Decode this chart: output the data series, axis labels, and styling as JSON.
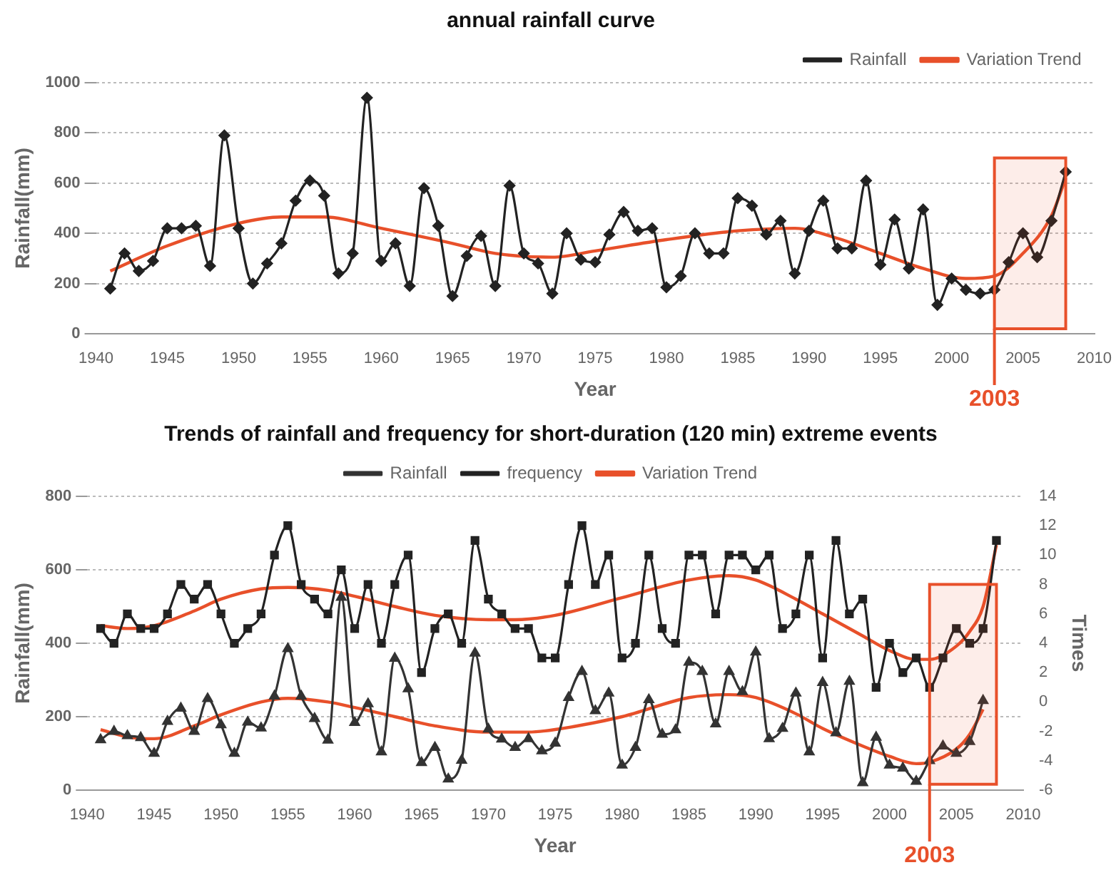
{
  "chart_data": [
    {
      "type": "line",
      "title": "annual rainfall curve",
      "xlabel": "Year",
      "ylabel": "Rainfall(mm)",
      "x": [
        1941,
        1942,
        1943,
        1944,
        1945,
        1946,
        1947,
        1948,
        1949,
        1950,
        1951,
        1952,
        1953,
        1954,
        1955,
        1956,
        1957,
        1958,
        1959,
        1960,
        1961,
        1962,
        1963,
        1964,
        1965,
        1966,
        1967,
        1968,
        1969,
        1970,
        1971,
        1972,
        1973,
        1974,
        1975,
        1976,
        1977,
        1978,
        1979,
        1980,
        1981,
        1982,
        1983,
        1984,
        1985,
        1986,
        1987,
        1988,
        1989,
        1990,
        1991,
        1992,
        1993,
        1994,
        1995,
        1996,
        1997,
        1998,
        1999,
        2000,
        2001,
        2002,
        2003,
        2004,
        2005,
        2006,
        2007,
        2008
      ],
      "series": [
        {
          "name": "Rainfall",
          "color": "#222222",
          "marker": "diamond",
          "values": [
            180,
            320,
            250,
            290,
            420,
            420,
            430,
            270,
            790,
            420,
            200,
            280,
            360,
            530,
            610,
            550,
            240,
            320,
            940,
            290,
            360,
            190,
            580,
            430,
            150,
            310,
            390,
            190,
            590,
            320,
            280,
            160,
            400,
            295,
            285,
            395,
            485,
            410,
            420,
            185,
            230,
            400,
            320,
            320,
            540,
            510,
            395,
            450,
            240,
            410,
            530,
            340,
            340,
            610,
            275,
            455,
            260,
            495,
            115,
            220,
            175,
            160,
            175,
            285,
            400,
            305,
            450,
            645
          ]
        },
        {
          "name": "Variation Trend",
          "color": "#e8502a",
          "marker": "none",
          "x": [
            1941,
            1945,
            1950,
            1953,
            1956,
            1960,
            1965,
            1968,
            1972,
            1975,
            1980,
            1985,
            1989,
            1992,
            1995,
            1998,
            2001,
            2003,
            2005,
            2007,
            2008
          ],
          "values": [
            250,
            350,
            440,
            465,
            465,
            420,
            360,
            320,
            305,
            330,
            375,
            410,
            420,
            380,
            320,
            260,
            220,
            230,
            320,
            470,
            620
          ]
        }
      ],
      "xlim": [
        1940,
        2010
      ],
      "xticks": [
        1940,
        1945,
        1950,
        1955,
        1960,
        1965,
        1970,
        1975,
        1980,
        1985,
        1990,
        1995,
        2000,
        2005,
        2010
      ],
      "ylim": [
        0,
        1000
      ],
      "yticks": [
        0,
        200,
        400,
        600,
        800,
        1000
      ],
      "grid": "y",
      "legend": "top right",
      "bands": [
        {
          "axis": "x",
          "from": 2003,
          "to": 2008,
          "label": "2003",
          "color": "#e8502a"
        }
      ]
    },
    {
      "type": "line",
      "title": "Trends of rainfall and frequency for short-duration (120 min) extreme events",
      "xlabel": "Year",
      "ylabel": "Rainfall(mm)",
      "y2label": "Times",
      "x": [
        1941,
        1942,
        1943,
        1944,
        1945,
        1946,
        1947,
        1948,
        1949,
        1950,
        1951,
        1952,
        1953,
        1954,
        1955,
        1956,
        1957,
        1958,
        1959,
        1960,
        1961,
        1962,
        1963,
        1964,
        1965,
        1966,
        1967,
        1968,
        1969,
        1970,
        1971,
        1972,
        1973,
        1974,
        1975,
        1976,
        1977,
        1978,
        1979,
        1980,
        1981,
        1982,
        1983,
        1984,
        1985,
        1986,
        1987,
        1988,
        1989,
        1990,
        1991,
        1992,
        1993,
        1994,
        1995,
        1996,
        1997,
        1998,
        1999,
        2000,
        2001,
        2002,
        2003,
        2004,
        2005,
        2006,
        2007,
        2008
      ],
      "series": [
        {
          "name": "Rainfall",
          "color": "#333333",
          "marker": "triangle",
          "values": [
            137,
            160,
            148,
            143,
            100,
            187,
            223,
            160,
            249,
            178,
            100,
            185,
            169,
            256,
            385,
            256,
            195,
            136,
            525,
            184,
            235,
            104,
            359,
            276,
            75,
            116,
            30,
            81,
            373,
            166,
            139,
            116,
            140,
            107,
            128,
            252,
            323,
            216,
            264,
            68,
            116,
            246,
            152,
            164,
            348,
            323,
            180,
            323,
            268,
            376,
            140,
            168,
            264,
            104,
            293,
            156,
            296,
            20,
            144,
            68,
            60,
            24,
            80,
            120,
            100,
            132,
            244,
            null
          ]
        },
        {
          "name": "frequency",
          "color": "#222222",
          "marker": "square",
          "axis": "y2",
          "values": [
            5,
            4,
            6,
            5,
            5,
            6,
            8,
            7,
            8,
            6,
            4,
            5,
            6,
            10,
            12,
            8,
            7,
            6,
            9,
            5,
            8,
            4,
            8,
            10,
            2,
            5,
            6,
            4,
            11,
            7,
            6,
            5,
            5,
            3,
            3,
            8,
            12,
            8,
            10,
            3,
            4,
            10,
            5,
            4,
            10,
            10,
            6,
            10,
            10,
            9,
            10,
            5,
            6,
            10,
            3,
            11,
            6,
            7,
            1,
            4,
            2,
            3,
            1,
            3,
            5,
            4,
            5,
            11
          ]
        },
        {
          "name": "Variation Trend",
          "color": "#e8502a",
          "marker": "none",
          "axis": "y2",
          "x": [
            1941,
            1943,
            1945,
            1948,
            1950,
            1953,
            1955,
            1958,
            1960,
            1963,
            1966,
            1970,
            1972,
            1975,
            1980,
            1985,
            1988,
            1990,
            1993,
            1995,
            1998,
            2000,
            2002,
            2003,
            2005,
            2006,
            2007,
            2008
          ],
          "values": [
            5.2,
            5,
            5.2,
            6.2,
            7,
            7.7,
            7.8,
            7.6,
            7.2,
            6.5,
            5.9,
            5.6,
            5.6,
            5.9,
            7.1,
            8.3,
            8.6,
            8.3,
            7,
            6,
            4.5,
            3.5,
            2.9,
            2.9,
            3.8,
            4.8,
            6.5,
            10.7
          ]
        },
        {
          "color": "#e8502a",
          "marker": "none",
          "x": [
            1941,
            1943,
            1945,
            1948,
            1950,
            1953,
            1955,
            1958,
            1960,
            1963,
            1966,
            1970,
            1973,
            1975,
            1980,
            1985,
            1988,
            1990,
            1993,
            1995,
            1998,
            2000,
            2002,
            2003,
            2005,
            2006,
            2007
          ],
          "values": [
            165,
            145,
            140,
            175,
            205,
            240,
            250,
            240,
            225,
            200,
            175,
            158,
            158,
            165,
            200,
            252,
            260,
            252,
            208,
            168,
            120,
            92,
            72,
            76,
            112,
            152,
            220
          ]
        }
      ],
      "xlim": [
        1940,
        2010
      ],
      "xticks": [
        1940,
        1945,
        1950,
        1955,
        1960,
        1965,
        1970,
        1975,
        1980,
        1985,
        1990,
        1995,
        2000,
        2005,
        2010
      ],
      "ylim": [
        0,
        800
      ],
      "yticks": [
        0,
        200,
        400,
        600,
        800
      ],
      "y2lim": [
        -6,
        14
      ],
      "y2ticks": [
        -6,
        -4,
        -2,
        0,
        2,
        4,
        6,
        8,
        10,
        12,
        14
      ],
      "grid": "y",
      "legend": "top",
      "bands": [
        {
          "axis": "x",
          "from": 2003,
          "to": 2008,
          "label": "2003",
          "color": "#e8502a"
        }
      ]
    }
  ]
}
